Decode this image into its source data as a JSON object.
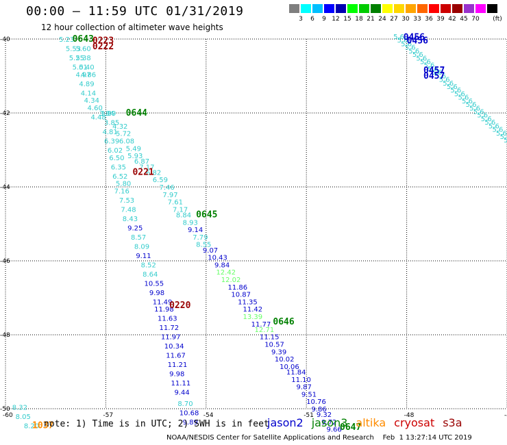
{
  "header": {
    "title": "00:00 – 11:59 UTC 01/31/2019",
    "subtitle": "12 hour collection of altimeter wave heights"
  },
  "colorbar": {
    "unit": "(ft)",
    "colors": [
      "#7f7f7f",
      "#00ffff",
      "#00bfff",
      "#0000ff",
      "#0000b2",
      "#00ff00",
      "#00cc00",
      "#008000",
      "#ffff00",
      "#ffd700",
      "#ffa500",
      "#ff6600",
      "#ff0000",
      "#cc0000",
      "#990000",
      "#9932cc",
      "#ff00ff",
      "#000000"
    ],
    "labels": [
      "3",
      "6",
      "9",
      "12",
      "15",
      "18",
      "21",
      "24",
      "27",
      "30",
      "33",
      "36",
      "39",
      "42",
      "45",
      "70"
    ]
  },
  "footnote": "note: 1) Time is in UTC; 2) SWH is in feet",
  "legend": [
    {
      "name": "jason2",
      "color": "#0000cc"
    },
    {
      "name": "jason3",
      "color": "#008000"
    },
    {
      "name": "altika",
      "color": "#ff8c00"
    },
    {
      "name": "cryosat",
      "color": "#cc0000"
    },
    {
      "name": "s3a",
      "color": "#990000"
    }
  ],
  "credit": "NOAA/NESDIS Center for Satellite Applications and Research    Feb  1 13:27:14 UTC 2019",
  "chart_data": {
    "type": "scatter",
    "title": "12 hour collection of altimeter wave heights",
    "xlabel": "",
    "ylabel": "",
    "xlim": [
      -60,
      -45
    ],
    "ylim": [
      -50,
      -40
    ],
    "x_ticks": [
      "-60",
      "-57",
      "-54",
      "-51",
      "-48",
      "-45"
    ],
    "y_ticks": [
      "-40",
      "-42",
      "-44",
      "-46",
      "-48",
      "-50"
    ],
    "grid": true,
    "points": [
      {
        "lon": -58.4,
        "lat": -40.0,
        "v": "5.23",
        "c": "#33cccc"
      },
      {
        "lon": -58.2,
        "lat": -40.25,
        "v": "5.53",
        "c": "#33cccc"
      },
      {
        "lon": -57.9,
        "lat": -40.25,
        "v": "5.60",
        "c": "#33cccc"
      },
      {
        "lon": -58.1,
        "lat": -40.5,
        "v": "5.25",
        "c": "#33cccc"
      },
      {
        "lon": -57.9,
        "lat": -40.5,
        "v": "5.38",
        "c": "#33cccc"
      },
      {
        "lon": -58.0,
        "lat": -40.75,
        "v": "5.01",
        "c": "#33cccc"
      },
      {
        "lon": -57.8,
        "lat": -40.75,
        "v": "5.40",
        "c": "#33cccc"
      },
      {
        "lon": -57.9,
        "lat": -40.95,
        "v": "4.97",
        "c": "#33cccc"
      },
      {
        "lon": -57.75,
        "lat": -40.95,
        "v": "4.86",
        "c": "#33cccc"
      },
      {
        "lon": -57.8,
        "lat": -41.2,
        "v": "4.89",
        "c": "#33cccc"
      },
      {
        "lon": -57.75,
        "lat": -41.45,
        "v": "4.14",
        "c": "#33cccc"
      },
      {
        "lon": -57.65,
        "lat": -41.65,
        "v": "4.34",
        "c": "#33cccc"
      },
      {
        "lon": -57.55,
        "lat": -41.85,
        "v": "4.60",
        "c": "#33cccc"
      },
      {
        "lon": -57.45,
        "lat": -42.1,
        "v": "4.48",
        "c": "#33cccc"
      },
      {
        "lon": -57.2,
        "lat": -42.0,
        "v": "3.84",
        "c": "#33cccc"
      },
      {
        "lon": -57.15,
        "lat": -42.0,
        "v": "3.89",
        "c": "#33cccc"
      },
      {
        "lon": -57.05,
        "lat": -42.25,
        "v": "3.85",
        "c": "#33cccc"
      },
      {
        "lon": -56.8,
        "lat": -42.35,
        "v": "4.32",
        "c": "#33cccc"
      },
      {
        "lon": -57.1,
        "lat": -42.5,
        "v": "4.81",
        "c": "#33cccc"
      },
      {
        "lon": -56.7,
        "lat": -42.55,
        "v": "5.72",
        "c": "#33cccc"
      },
      {
        "lon": -56.6,
        "lat": -42.75,
        "v": "6.08",
        "c": "#33cccc"
      },
      {
        "lon": -57.05,
        "lat": -42.75,
        "v": "6.39",
        "c": "#33cccc"
      },
      {
        "lon": -56.4,
        "lat": -42.95,
        "v": "5.49",
        "c": "#33cccc"
      },
      {
        "lon": -56.95,
        "lat": -43.0,
        "v": "6.02",
        "c": "#33cccc"
      },
      {
        "lon": -56.35,
        "lat": -43.15,
        "v": "5.93",
        "c": "#33cccc"
      },
      {
        "lon": -56.9,
        "lat": -43.2,
        "v": "6.50",
        "c": "#33cccc"
      },
      {
        "lon": -56.15,
        "lat": -43.3,
        "v": "6.87",
        "c": "#33cccc"
      },
      {
        "lon": -56.85,
        "lat": -43.45,
        "v": "6.35",
        "c": "#33cccc"
      },
      {
        "lon": -56.0,
        "lat": -43.45,
        "v": "7.17",
        "c": "#33cccc"
      },
      {
        "lon": -55.8,
        "lat": -43.6,
        "v": "6.82",
        "c": "#33cccc"
      },
      {
        "lon": -56.8,
        "lat": -43.7,
        "v": "6.52",
        "c": "#33cccc"
      },
      {
        "lon": -55.6,
        "lat": -43.8,
        "v": "6.59",
        "c": "#33cccc"
      },
      {
        "lon": -56.7,
        "lat": -43.9,
        "v": "5.80",
        "c": "#33cccc"
      },
      {
        "lon": -55.4,
        "lat": -44.0,
        "v": "7.46",
        "c": "#33cccc"
      },
      {
        "lon": -56.75,
        "lat": -44.1,
        "v": "7.16",
        "c": "#33cccc"
      },
      {
        "lon": -55.3,
        "lat": -44.2,
        "v": "7.97",
        "c": "#33cccc"
      },
      {
        "lon": -56.6,
        "lat": -44.35,
        "v": "7.53",
        "c": "#33cccc"
      },
      {
        "lon": -55.15,
        "lat": -44.4,
        "v": "7.61",
        "c": "#33cccc"
      },
      {
        "lon": -56.55,
        "lat": -44.6,
        "v": "7.48",
        "c": "#33cccc"
      },
      {
        "lon": -55.0,
        "lat": -44.6,
        "v": "7.17",
        "c": "#33cccc"
      },
      {
        "lon": -54.9,
        "lat": -44.75,
        "v": "8.84",
        "c": "#33cccc"
      },
      {
        "lon": -54.7,
        "lat": -44.95,
        "v": "8.93",
        "c": "#33cccc"
      },
      {
        "lon": -56.5,
        "lat": -44.85,
        "v": "8.43",
        "c": "#33cccc"
      },
      {
        "lon": -56.35,
        "lat": -45.1,
        "v": "9.25",
        "c": "#0000cc"
      },
      {
        "lon": -54.55,
        "lat": -45.15,
        "v": "9.14",
        "c": "#0000cc"
      },
      {
        "lon": -56.25,
        "lat": -45.35,
        "v": "8.57",
        "c": "#33cccc"
      },
      {
        "lon": -54.4,
        "lat": -45.35,
        "v": "7.79",
        "c": "#33cccc"
      },
      {
        "lon": -54.3,
        "lat": -45.55,
        "v": "8.55",
        "c": "#33cccc"
      },
      {
        "lon": -56.15,
        "lat": -45.6,
        "v": "8.09",
        "c": "#33cccc"
      },
      {
        "lon": -54.1,
        "lat": -45.7,
        "v": "9.07",
        "c": "#0000cc"
      },
      {
        "lon": -56.1,
        "lat": -45.85,
        "v": "9.11",
        "c": "#0000cc"
      },
      {
        "lon": -53.95,
        "lat": -45.9,
        "v": "10.43",
        "c": "#0000cc"
      },
      {
        "lon": -53.75,
        "lat": -46.1,
        "v": "9.84",
        "c": "#0000cc"
      },
      {
        "lon": -55.95,
        "lat": -46.1,
        "v": "8.52",
        "c": "#33cccc"
      },
      {
        "lon": -53.7,
        "lat": -46.3,
        "v": "12.42",
        "c": "#66ff66"
      },
      {
        "lon": -55.9,
        "lat": -46.35,
        "v": "8.64",
        "c": "#33cccc"
      },
      {
        "lon": -53.55,
        "lat": -46.5,
        "v": "12.02",
        "c": "#66ff66"
      },
      {
        "lon": -55.85,
        "lat": -46.6,
        "v": "10.55",
        "c": "#0000cc"
      },
      {
        "lon": -53.35,
        "lat": -46.7,
        "v": "11.86",
        "c": "#0000cc"
      },
      {
        "lon": -55.7,
        "lat": -46.85,
        "v": "9.98",
        "c": "#0000cc"
      },
      {
        "lon": -53.25,
        "lat": -46.9,
        "v": "10.87",
        "c": "#0000cc"
      },
      {
        "lon": -55.6,
        "lat": -47.1,
        "v": "11.49",
        "c": "#0000cc"
      },
      {
        "lon": -53.05,
        "lat": -47.1,
        "v": "11.35",
        "c": "#0000cc"
      },
      {
        "lon": -55.55,
        "lat": -47.3,
        "v": "11.98",
        "c": "#0000cc"
      },
      {
        "lon": -52.9,
        "lat": -47.3,
        "v": "11.42",
        "c": "#0000cc"
      },
      {
        "lon": -52.9,
        "lat": -47.5,
        "v": "13.39",
        "c": "#66ff66"
      },
      {
        "lon": -55.45,
        "lat": -47.55,
        "v": "11.63",
        "c": "#0000cc"
      },
      {
        "lon": -52.65,
        "lat": -47.7,
        "v": "11.77",
        "c": "#0000cc"
      },
      {
        "lon": -52.55,
        "lat": -47.85,
        "v": "12.71",
        "c": "#66ff66"
      },
      {
        "lon": -55.4,
        "lat": -47.8,
        "v": "11.72",
        "c": "#0000cc"
      },
      {
        "lon": -52.4,
        "lat": -48.05,
        "v": "11.15",
        "c": "#0000cc"
      },
      {
        "lon": -55.35,
        "lat": -48.05,
        "v": "11.97",
        "c": "#0000cc"
      },
      {
        "lon": -52.25,
        "lat": -48.25,
        "v": "10.57",
        "c": "#0000cc"
      },
      {
        "lon": -55.25,
        "lat": -48.3,
        "v": "10.34",
        "c": "#0000cc"
      },
      {
        "lon": -52.05,
        "lat": -48.45,
        "v": "9.39",
        "c": "#0000cc"
      },
      {
        "lon": -55.2,
        "lat": -48.55,
        "v": "11.67",
        "c": "#0000cc"
      },
      {
        "lon": -51.95,
        "lat": -48.65,
        "v": "10.02",
        "c": "#0000cc"
      },
      {
        "lon": -51.8,
        "lat": -48.85,
        "v": "10.06",
        "c": "#0000cc"
      },
      {
        "lon": -55.15,
        "lat": -48.8,
        "v": "11.21",
        "c": "#0000cc"
      },
      {
        "lon": -51.6,
        "lat": -49.0,
        "v": "11.84",
        "c": "#0000cc"
      },
      {
        "lon": -55.1,
        "lat": -49.05,
        "v": "9.98",
        "c": "#0000cc"
      },
      {
        "lon": -51.45,
        "lat": -49.2,
        "v": "11.10",
        "c": "#0000cc"
      },
      {
        "lon": -55.05,
        "lat": -49.3,
        "v": "11.11",
        "c": "#0000cc"
      },
      {
        "lon": -51.3,
        "lat": -49.4,
        "v": "9.87",
        "c": "#0000cc"
      },
      {
        "lon": -54.95,
        "lat": -49.55,
        "v": "9.44",
        "c": "#0000cc"
      },
      {
        "lon": -51.15,
        "lat": -49.6,
        "v": "9.51",
        "c": "#0000cc"
      },
      {
        "lon": -51.0,
        "lat": -49.8,
        "v": "10.76",
        "c": "#0000cc"
      },
      {
        "lon": -54.85,
        "lat": -49.85,
        "v": "8.70",
        "c": "#33cccc"
      },
      {
        "lon": -50.85,
        "lat": -50.0,
        "v": "9.86",
        "c": "#0000cc"
      },
      {
        "lon": -54.8,
        "lat": -50.1,
        "v": "10.68",
        "c": "#0000cc"
      },
      {
        "lon": -50.7,
        "lat": -50.15,
        "v": "9.32",
        "c": "#0000cc"
      },
      {
        "lon": -54.7,
        "lat": -50.35,
        "v": "9.89",
        "c": "#0000cc"
      },
      {
        "lon": -50.55,
        "lat": -50.35,
        "v": "9.72",
        "c": "#0000cc"
      },
      {
        "lon": -50.4,
        "lat": -50.55,
        "v": "9.66",
        "c": "#0000cc"
      },
      {
        "lon": -59.8,
        "lat": -49.95,
        "v": "8.32",
        "c": "#33cccc"
      },
      {
        "lon": -59.7,
        "lat": -50.2,
        "v": "8.05",
        "c": "#33cccc"
      },
      {
        "lon": -59.45,
        "lat": -50.45,
        "v": "8.20",
        "c": "#33cccc"
      }
    ],
    "pass_labels": [
      {
        "lon": -58.0,
        "lat": -40.0,
        "t": "0643",
        "c": "#008000"
      },
      {
        "lon": -57.4,
        "lat": -40.05,
        "t": "0223",
        "c": "#990000"
      },
      {
        "lon": -57.4,
        "lat": -40.2,
        "t": "0222",
        "c": "#990000"
      },
      {
        "lon": -56.4,
        "lat": -42.0,
        "t": "0644",
        "c": "#008000"
      },
      {
        "lon": -56.2,
        "lat": -43.6,
        "t": "0221",
        "c": "#990000"
      },
      {
        "lon": -54.3,
        "lat": -44.75,
        "t": "0645",
        "c": "#008000"
      },
      {
        "lon": -55.1,
        "lat": -47.2,
        "t": "0220",
        "c": "#990000"
      },
      {
        "lon": -52.0,
        "lat": -47.65,
        "t": "0646",
        "c": "#008000"
      },
      {
        "lon": -50.0,
        "lat": -50.5,
        "t": "0647",
        "c": "#008000"
      },
      {
        "lon": -59.2,
        "lat": -50.45,
        "t": "1037",
        "c": "#ff8c00"
      },
      {
        "lon": -48.1,
        "lat": -39.95,
        "t": "0456",
        "c": "#0000cc"
      },
      {
        "lon": -48.0,
        "lat": -40.05,
        "t": "0456",
        "c": "#0000cc"
      },
      {
        "lon": -47.5,
        "lat": -40.85,
        "t": "0457",
        "c": "#0000cc"
      },
      {
        "lon": -47.5,
        "lat": -41.0,
        "t": "0457",
        "c": "#0000cc"
      }
    ],
    "track_ne": {
      "from": {
        "lon": -48.4,
        "lat": -40.0
      },
      "to": {
        "lon": -45.1,
        "lat": -42.8
      },
      "c": "#33cccc"
    }
  }
}
